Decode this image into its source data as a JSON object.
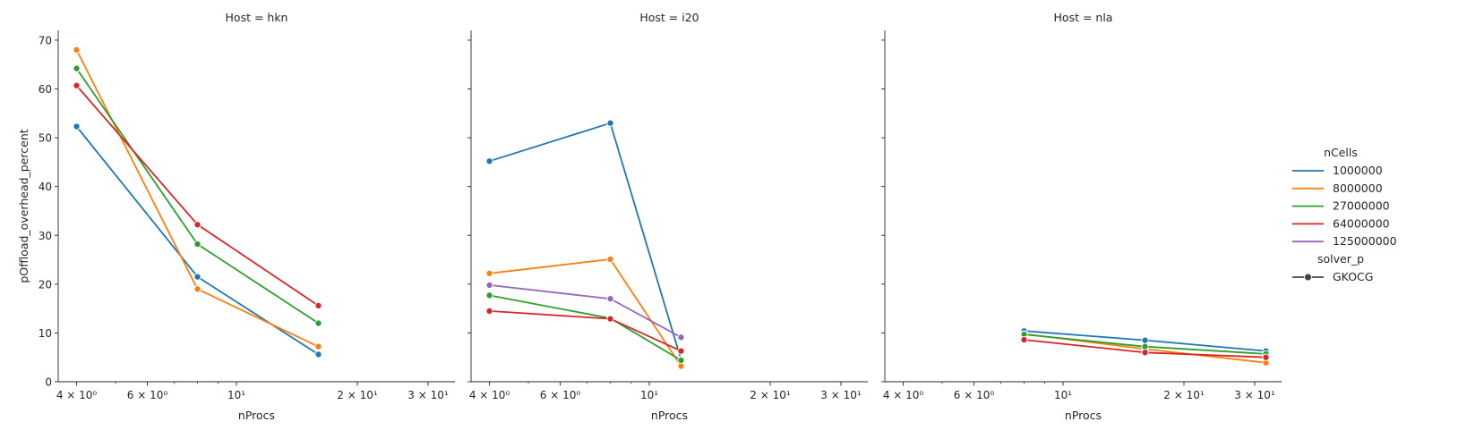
{
  "chart_data": {
    "type": "line",
    "ylabel": "pOffload_overhead_percent",
    "xlabel": "nProcs",
    "xscale": "log",
    "xlim": [
      3.6,
      35
    ],
    "ylim": [
      0,
      72
    ],
    "y_ticks": [
      0,
      10,
      20,
      30,
      40,
      50,
      60,
      70
    ],
    "x_ticks": [
      {
        "value": 4,
        "label": "4 × 10⁰"
      },
      {
        "value": 6,
        "label": "6 × 10⁰"
      },
      {
        "value": 10,
        "label": "10¹"
      },
      {
        "value": 20,
        "label": "2 × 10¹"
      },
      {
        "value": 30,
        "label": "3 × 10¹"
      }
    ],
    "x_minor_ticks": [
      5,
      7,
      8,
      9
    ],
    "shared_y": true,
    "grid": false,
    "legend": {
      "placement": "right",
      "hue_title": "nCells",
      "hue_entries": [
        {
          "name": "1000000",
          "color": "#1f77b4"
        },
        {
          "name": "8000000",
          "color": "#ff7f0e"
        },
        {
          "name": "27000000",
          "color": "#2ca02c"
        },
        {
          "name": "64000000",
          "color": "#d62728"
        },
        {
          "name": "125000000",
          "color": "#9467bd"
        }
      ],
      "style_title": "solver_p",
      "style_entries": [
        {
          "name": "GKOCG",
          "color": "#444444"
        }
      ]
    },
    "facets": [
      {
        "title": "Host = hkn",
        "series": [
          {
            "name": "1000000",
            "color": "#1f77b4",
            "x": [
              4,
              8,
              16
            ],
            "y": [
              52.3,
              21.5,
              5.6
            ]
          },
          {
            "name": "8000000",
            "color": "#ff7f0e",
            "x": [
              4,
              8,
              16
            ],
            "y": [
              68.0,
              19.0,
              7.2
            ]
          },
          {
            "name": "27000000",
            "color": "#2ca02c",
            "x": [
              4,
              8,
              16
            ],
            "y": [
              64.2,
              28.2,
              12.0
            ]
          },
          {
            "name": "64000000",
            "color": "#d62728",
            "x": [
              4,
              8,
              16
            ],
            "y": [
              60.7,
              32.2,
              15.6
            ]
          }
        ]
      },
      {
        "title": "Host = i20",
        "series": [
          {
            "name": "1000000",
            "color": "#1f77b4",
            "x": [
              4,
              8,
              12
            ],
            "y": [
              45.2,
              53.0,
              4.5
            ]
          },
          {
            "name": "8000000",
            "color": "#ff7f0e",
            "x": [
              4,
              8,
              12
            ],
            "y": [
              22.2,
              25.1,
              3.2
            ]
          },
          {
            "name": "27000000",
            "color": "#2ca02c",
            "x": [
              4,
              8,
              12
            ],
            "y": [
              17.7,
              13.0,
              4.4
            ]
          },
          {
            "name": "64000000",
            "color": "#d62728",
            "x": [
              4,
              8,
              12
            ],
            "y": [
              14.5,
              12.9,
              6.3
            ]
          },
          {
            "name": "125000000",
            "color": "#9467bd",
            "x": [
              4,
              8,
              12
            ],
            "y": [
              19.8,
              17.0,
              9.1
            ]
          }
        ]
      },
      {
        "title": "Host = nla",
        "series": [
          {
            "name": "1000000",
            "color": "#1f77b4",
            "x": [
              8,
              16,
              32
            ],
            "y": [
              10.4,
              8.5,
              6.3
            ]
          },
          {
            "name": "8000000",
            "color": "#ff7f0e",
            "x": [
              8,
              16,
              32
            ],
            "y": [
              9.8,
              6.7,
              3.9
            ]
          },
          {
            "name": "27000000",
            "color": "#2ca02c",
            "x": [
              8,
              16,
              32
            ],
            "y": [
              9.7,
              7.2,
              5.7
            ]
          },
          {
            "name": "64000000",
            "color": "#d62728",
            "x": [
              8,
              16,
              32
            ],
            "y": [
              8.6,
              6.0,
              5.0
            ]
          }
        ]
      }
    ]
  }
}
